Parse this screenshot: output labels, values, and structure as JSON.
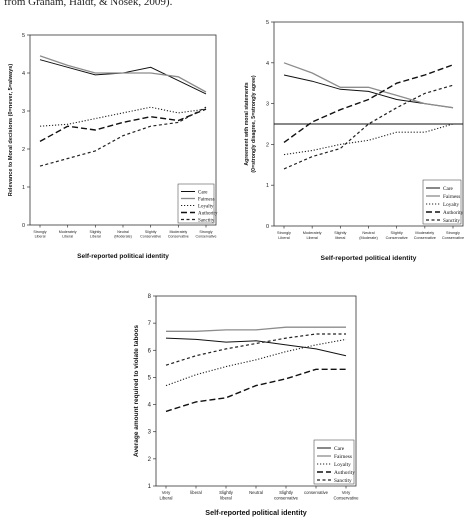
{
  "caption": "from Graham, Haidt, & Nosek, 2009).",
  "chart_data": [
    {
      "type": "line",
      "title": "",
      "xlabel": "Self-reported political identity",
      "ylabel": "Relevance to Moral decisions (0=never, 5=always)",
      "categories": [
        "Strongly Liberal",
        "Moderately Liberal",
        "Slightly Liberal",
        "Neutral (Moderate)",
        "Slightly Conservative",
        "Moderately Conservative",
        "Strongly Conservative"
      ],
      "yticks": [
        0,
        1,
        2,
        3,
        4,
        5
      ],
      "ylim": [
        0,
        5
      ],
      "legend_position": "bottom-right",
      "series": [
        {
          "name": "Care",
          "values": [
            4.35,
            4.15,
            3.95,
            4.0,
            4.15,
            3.8,
            3.45
          ]
        },
        {
          "name": "Fairness",
          "values": [
            4.45,
            4.2,
            4.0,
            4.0,
            4.0,
            3.9,
            3.5
          ]
        },
        {
          "name": "Loyalty",
          "values": [
            2.6,
            2.65,
            2.8,
            2.95,
            3.1,
            2.95,
            3.05
          ]
        },
        {
          "name": "Authority",
          "values": [
            2.2,
            2.6,
            2.5,
            2.7,
            2.85,
            2.75,
            3.05
          ]
        },
        {
          "name": "Sanctity",
          "values": [
            1.55,
            1.75,
            1.95,
            2.35,
            2.6,
            2.7,
            3.1
          ]
        }
      ]
    },
    {
      "type": "line",
      "title": "",
      "xlabel": "Self-reported political identity",
      "ylabel": "Agreement with moral statements (0=strongly disagree, 5=strongly agree)",
      "categories": [
        "Strongly Liberal",
        "Moderately Liberal",
        "Slightly liberal",
        "Neutral (Moderate)",
        "Slightly Conservative",
        "Moderately Conservative",
        "Strongly Conservative"
      ],
      "yticks": [
        0,
        1,
        2,
        3,
        4,
        5
      ],
      "ylim": [
        0,
        5
      ],
      "reference_line": 2.5,
      "legend_position": "bottom-right",
      "series": [
        {
          "name": "Care",
          "values": [
            3.7,
            3.55,
            3.35,
            3.3,
            3.1,
            3.0,
            2.9
          ]
        },
        {
          "name": "Fairness",
          "values": [
            4.0,
            3.75,
            3.4,
            3.4,
            3.2,
            3.0,
            2.9
          ]
        },
        {
          "name": "Loyalty",
          "values": [
            1.75,
            1.85,
            2.0,
            2.1,
            2.3,
            2.3,
            2.5
          ]
        },
        {
          "name": "Authority",
          "values": [
            2.05,
            2.55,
            2.85,
            3.1,
            3.5,
            3.7,
            3.95
          ]
        },
        {
          "name": "Sanctity",
          "values": [
            1.4,
            1.7,
            1.9,
            2.5,
            2.9,
            3.25,
            3.45
          ]
        }
      ]
    },
    {
      "type": "line",
      "title": "",
      "xlabel": "Self-reported political identity",
      "ylabel": "Average amount required to violate taboos",
      "categories": [
        "Very Liberal",
        "liberal",
        "Slightly liberal",
        "Neutral",
        "Slightly conservative",
        "conservative",
        "Very Conservative"
      ],
      "yticks": [
        1,
        2,
        3,
        4,
        5,
        6,
        7,
        8
      ],
      "ylim": [
        1,
        8
      ],
      "legend_position": "bottom-right",
      "series": [
        {
          "name": "Care",
          "values": [
            6.45,
            6.4,
            6.3,
            6.35,
            6.2,
            6.05,
            5.8
          ]
        },
        {
          "name": "Fairness",
          "values": [
            6.7,
            6.7,
            6.75,
            6.75,
            6.85,
            6.85,
            6.85
          ]
        },
        {
          "name": "Loyalty",
          "values": [
            4.7,
            5.1,
            5.4,
            5.65,
            5.95,
            6.2,
            6.4
          ]
        },
        {
          "name": "Authority",
          "values": [
            3.75,
            4.1,
            4.25,
            4.7,
            4.95,
            5.3,
            5.3
          ]
        },
        {
          "name": "Sanctity",
          "values": [
            5.45,
            5.8,
            6.05,
            6.25,
            6.45,
            6.6,
            6.6
          ]
        }
      ]
    }
  ]
}
